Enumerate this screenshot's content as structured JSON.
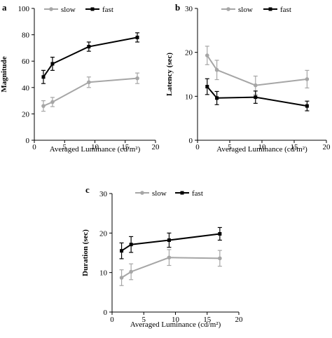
{
  "chart_data": [
    {
      "type": "line",
      "panel_label": "a",
      "xlabel": "Averaged Luminance (cd/m²)",
      "ylabel": "Magnitude",
      "xlim": [
        0,
        20
      ],
      "ylim": [
        0,
        100
      ],
      "x_ticks": [
        "0",
        "5",
        "10",
        "15",
        "20"
      ],
      "y_ticks": [
        "0",
        "20",
        "40",
        "60",
        "80",
        "100"
      ],
      "legend_position": "top",
      "series": [
        {
          "name": "slow",
          "color": "#a6a6a6",
          "marker": "circle",
          "x": [
            1.5,
            3,
            9,
            17
          ],
          "y": [
            26,
            29,
            44,
            47
          ],
          "err": [
            4,
            3.5,
            4,
            4
          ]
        },
        {
          "name": "fast",
          "color": "#000000",
          "marker": "square",
          "x": [
            1.5,
            3,
            9,
            17
          ],
          "y": [
            48,
            58,
            71,
            78
          ],
          "err": [
            5,
            5,
            3.5,
            3.5
          ]
        }
      ]
    },
    {
      "type": "line",
      "panel_label": "b",
      "xlabel": "Averaged Luminance (cd/m²)",
      "ylabel": "Latency (sec)",
      "xlim": [
        0,
        20
      ],
      "ylim": [
        0,
        30
      ],
      "x_ticks": [
        "0",
        "5",
        "10",
        "15",
        "20"
      ],
      "y_ticks": [
        "0",
        "10",
        "20",
        "30"
      ],
      "legend_position": "top",
      "series": [
        {
          "name": "slow",
          "color": "#a6a6a6",
          "marker": "circle",
          "x": [
            1.5,
            3,
            9,
            17
          ],
          "y": [
            19.3,
            16,
            12.5,
            13.9
          ],
          "err": [
            2.1,
            2.2,
            2.1,
            2
          ]
        },
        {
          "name": "fast",
          "color": "#000000",
          "marker": "square",
          "x": [
            1.5,
            3,
            9,
            17
          ],
          "y": [
            12.2,
            9.6,
            9.8,
            7.8
          ],
          "err": [
            1.8,
            1.5,
            1.4,
            1.1
          ]
        }
      ]
    },
    {
      "type": "line",
      "panel_label": "c",
      "xlabel": "Averaged Luminance  (cd/m²)",
      "ylabel": "Duration (sec)",
      "xlim": [
        0,
        20
      ],
      "ylim": [
        0,
        30
      ],
      "x_ticks": [
        "0",
        "5",
        "10",
        "15",
        "20"
      ],
      "y_ticks": [
        "0",
        "10",
        "20",
        "30"
      ],
      "legend_position": "top",
      "series": [
        {
          "name": "slow",
          "color": "#a6a6a6",
          "marker": "circle",
          "x": [
            1.5,
            3,
            9,
            17
          ],
          "y": [
            8.7,
            10.2,
            13.8,
            13.6
          ],
          "err": [
            2,
            2,
            2,
            2
          ]
        },
        {
          "name": "fast",
          "color": "#000000",
          "marker": "square",
          "x": [
            1.5,
            3,
            9,
            17
          ],
          "y": [
            15.5,
            17.1,
            18.2,
            19.8
          ],
          "err": [
            2,
            2,
            1.8,
            1.6
          ]
        }
      ]
    }
  ]
}
